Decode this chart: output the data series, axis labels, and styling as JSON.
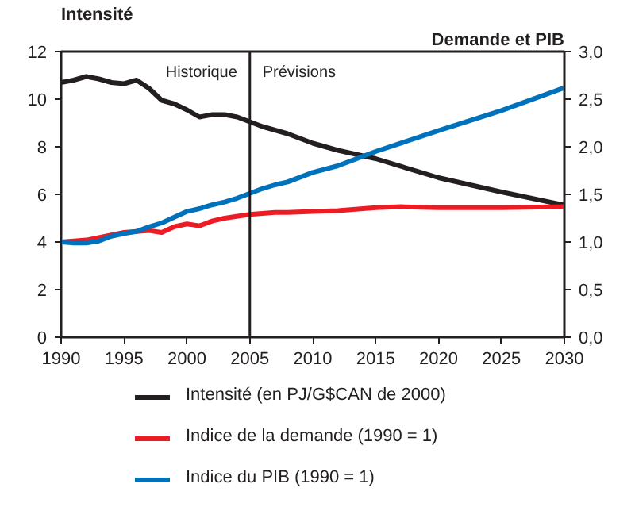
{
  "chart_data": {
    "type": "line",
    "ylabel": "Intensité",
    "y2label": "Demande et PIB",
    "xlim": [
      1990,
      2030
    ],
    "xticks": [
      1990,
      1995,
      2000,
      2005,
      2010,
      2015,
      2020,
      2025,
      2030
    ],
    "ylim": [
      0,
      12
    ],
    "yticks": [
      0,
      2,
      4,
      6,
      8,
      10,
      12
    ],
    "y2lim": [
      0,
      3
    ],
    "y2ticks": [
      {
        "value": 0,
        "label": "0,0"
      },
      {
        "value": 0.5,
        "label": "0,5"
      },
      {
        "value": 1,
        "label": "1,0"
      },
      {
        "value": 1.5,
        "label": "1,5"
      },
      {
        "value": 2,
        "label": "2,0"
      },
      {
        "value": 2.5,
        "label": "2,5"
      },
      {
        "value": 3,
        "label": "3,0"
      }
    ],
    "grid": false,
    "legend": "bottom",
    "ref_lines": [
      {
        "axis": "x",
        "value": 2005,
        "color": "#231f20"
      }
    ],
    "annotations": [
      "Historique",
      "Prévisions"
    ],
    "series": [
      {
        "name": "Intensité (en PJ/G$CAN de 2000)",
        "color": "#231f20",
        "x": [
          1990,
          1991,
          1992,
          1993,
          1994,
          1995,
          1996,
          1997,
          1998,
          1999,
          2000,
          2001,
          2002,
          2003,
          2004,
          2005,
          2006,
          2007,
          2008,
          2009,
          2010,
          2011,
          2012,
          2015,
          2020,
          2025,
          2030
        ],
        "values": [
          10.7,
          10.8,
          10.95,
          10.85,
          10.7,
          10.65,
          10.8,
          10.45,
          9.95,
          9.8,
          9.55,
          9.25,
          9.35,
          9.35,
          9.25,
          9.05,
          8.85,
          8.7,
          8.55,
          8.35,
          8.15,
          8.0,
          7.85,
          7.5,
          6.7,
          6.1,
          5.55
        ]
      },
      {
        "name": "Indice de la demande (1990 = 1)",
        "color": "#ed1c24",
        "axis": "y2",
        "x": [
          1990,
          1992,
          1995,
          1997,
          1998,
          1999,
          2000,
          2001,
          2002,
          2003,
          2005,
          2007,
          2008,
          2010,
          2012,
          2015,
          2017,
          2020,
          2025,
          2030
        ],
        "values": [
          1.0,
          1.02,
          1.1,
          1.12,
          1.1,
          1.16,
          1.19,
          1.17,
          1.22,
          1.25,
          1.29,
          1.31,
          1.31,
          1.32,
          1.33,
          1.36,
          1.37,
          1.36,
          1.36,
          1.37
        ]
      },
      {
        "name": "Indice du PIB (1990 = 1)",
        "color": "#0072bc",
        "axis": "y2",
        "x": [
          1990,
          1991,
          1992,
          1993,
          1994,
          1995,
          1996,
          1997,
          1998,
          1999,
          2000,
          2001,
          2002,
          2003,
          2004,
          2005,
          2006,
          2007,
          2008,
          2009,
          2010,
          2012,
          2015,
          2020,
          2025,
          2030
        ],
        "values": [
          1.0,
          0.99,
          0.99,
          1.01,
          1.06,
          1.09,
          1.11,
          1.16,
          1.2,
          1.26,
          1.32,
          1.35,
          1.39,
          1.42,
          1.46,
          1.51,
          1.56,
          1.6,
          1.63,
          1.68,
          1.73,
          1.8,
          1.95,
          2.17,
          2.38,
          2.62
        ]
      }
    ]
  }
}
